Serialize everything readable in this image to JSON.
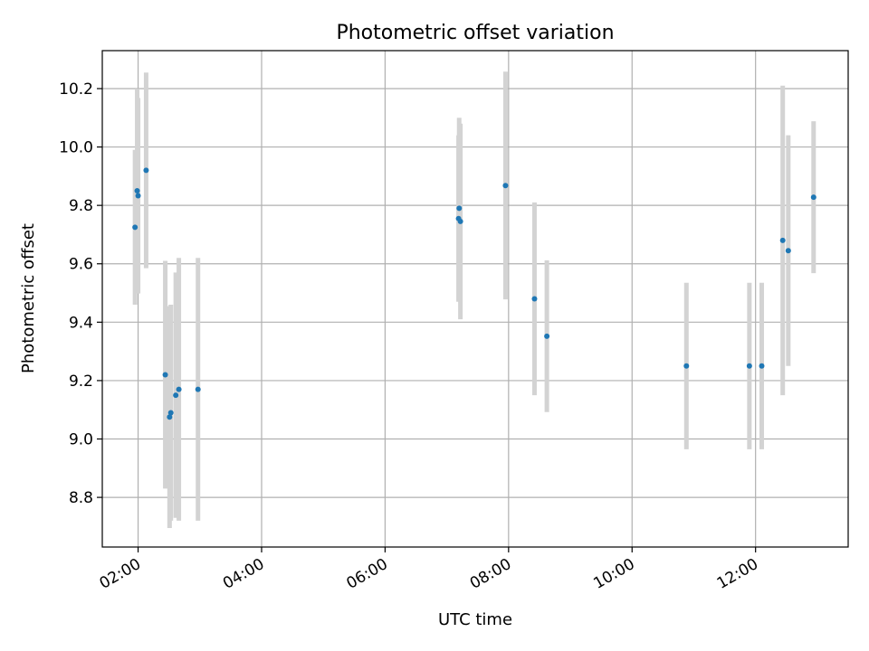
{
  "chart_data": {
    "type": "scatter",
    "title": "Photometric offset variation",
    "xlabel": "UTC time",
    "ylabel": "Photometric offset",
    "x_unit": "hours (UTC)",
    "xlim": [
      1.42,
      13.5
    ],
    "ylim": [
      8.63,
      10.33
    ],
    "x_ticks": [
      2,
      4,
      6,
      8,
      10,
      12
    ],
    "x_tick_labels": [
      "02:00",
      "04:00",
      "06:00",
      "08:00",
      "10:00",
      "12:00"
    ],
    "y_ticks": [
      8.8,
      9.0,
      9.2,
      9.4,
      9.6,
      9.8,
      10.0,
      10.2
    ],
    "y_tick_labels": [
      "8.8",
      "9.0",
      "9.2",
      "9.4",
      "9.6",
      "9.8",
      "10.0",
      "10.2"
    ],
    "grid": true,
    "marker_color": "#1f77b4",
    "errorbar_color": "#d3d3d3",
    "points": [
      {
        "x": 1.95,
        "y": 9.725,
        "err": 0.265
      },
      {
        "x": 1.985,
        "y": 9.85,
        "err": 0.35
      },
      {
        "x": 2.0,
        "y": 9.833,
        "err": 0.335
      },
      {
        "x": 2.13,
        "y": 9.92,
        "err": 0.335
      },
      {
        "x": 2.44,
        "y": 9.22,
        "err": 0.39
      },
      {
        "x": 2.51,
        "y": 9.075,
        "err": 0.38
      },
      {
        "x": 2.53,
        "y": 9.09,
        "err": 0.37
      },
      {
        "x": 2.61,
        "y": 9.15,
        "err": 0.42
      },
      {
        "x": 2.66,
        "y": 9.17,
        "err": 0.45
      },
      {
        "x": 2.97,
        "y": 9.17,
        "err": 0.45
      },
      {
        "x": 7.19,
        "y": 9.755,
        "err": 0.285
      },
      {
        "x": 7.2,
        "y": 9.79,
        "err": 0.31
      },
      {
        "x": 7.22,
        "y": 9.745,
        "err": 0.335
      },
      {
        "x": 7.95,
        "y": 9.868,
        "err": 0.39
      },
      {
        "x": 8.42,
        "y": 9.48,
        "err": 0.33
      },
      {
        "x": 8.62,
        "y": 9.352,
        "err": 0.26
      },
      {
        "x": 10.88,
        "y": 9.25,
        "err": 0.285
      },
      {
        "x": 11.9,
        "y": 9.25,
        "err": 0.285
      },
      {
        "x": 12.1,
        "y": 9.25,
        "err": 0.285
      },
      {
        "x": 12.44,
        "y": 9.68,
        "err": 0.53
      },
      {
        "x": 12.53,
        "y": 9.645,
        "err": 0.395
      },
      {
        "x": 12.94,
        "y": 9.828,
        "err": 0.26
      }
    ]
  }
}
